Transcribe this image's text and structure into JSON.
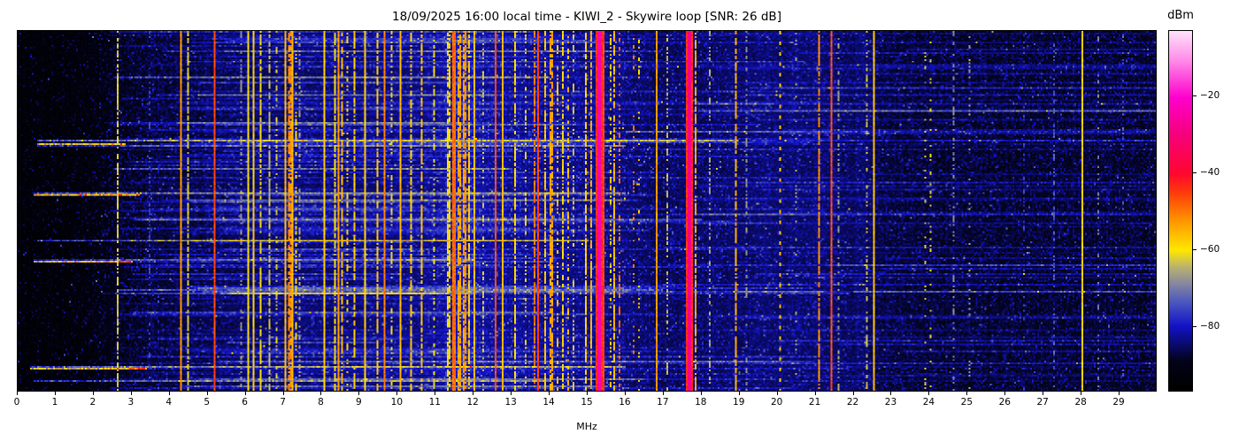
{
  "chart_data": {
    "type": "heatmap",
    "title": "18/09/2025 16:00 local time - KIWI_2 - Skywire loop [SNR: 26 dB]",
    "xlabel": "MHz",
    "colorbar_label": "dBm",
    "x_range_mhz": [
      0,
      30
    ],
    "x_ticks": [
      0,
      1,
      2,
      3,
      4,
      5,
      6,
      7,
      8,
      9,
      10,
      11,
      12,
      13,
      14,
      15,
      16,
      17,
      18,
      19,
      20,
      21,
      22,
      23,
      24,
      25,
      26,
      27,
      28,
      29
    ],
    "colorbar_ticks_dbm": [
      -20,
      -40,
      -60,
      -80
    ],
    "value_range_dbm": [
      -97,
      -3
    ],
    "legend_position": "right-colorbar",
    "grid": {
      "cols": 644,
      "rows": 205
    },
    "seed": 20250918,
    "colormap_stops": [
      [
        0.0,
        [
          0,
          0,
          0
        ]
      ],
      [
        0.08,
        [
          3,
          3,
          24
        ]
      ],
      [
        0.178,
        [
          18,
          18,
          200
        ]
      ],
      [
        0.245,
        [
          75,
          88,
          190
        ]
      ],
      [
        0.3,
        [
          138,
          138,
          158
        ]
      ],
      [
        0.345,
        [
          188,
          180,
          108
        ]
      ],
      [
        0.39,
        [
          255,
          232,
          0
        ]
      ],
      [
        0.47,
        [
          255,
          152,
          0
        ]
      ],
      [
        0.55,
        [
          255,
          60,
          10
        ]
      ],
      [
        0.602,
        [
          255,
          8,
          45
        ]
      ],
      [
        0.72,
        [
          246,
          0,
          130
        ]
      ],
      [
        0.816,
        [
          255,
          0,
          205
        ]
      ],
      [
        0.92,
        [
          255,
          140,
          233
        ]
      ],
      [
        1.0,
        [
          255,
          224,
          250
        ]
      ]
    ],
    "noise_floor_profile_dbm": [
      [
        0,
        -96.5
      ],
      [
        0.8,
        -96
      ],
      [
        1.6,
        -95
      ],
      [
        2.2,
        -93.5
      ],
      [
        2.8,
        -91
      ],
      [
        3.5,
        -89.5
      ],
      [
        4.5,
        -89.2
      ],
      [
        5.5,
        -88.6
      ],
      [
        6.5,
        -87.6
      ],
      [
        8,
        -87
      ],
      [
        9.5,
        -86.4
      ],
      [
        11,
        -85.4
      ],
      [
        11.7,
        -83
      ],
      [
        12.5,
        -85
      ],
      [
        14,
        -85.4
      ],
      [
        15,
        -85.4
      ],
      [
        16,
        -86.4
      ],
      [
        16.9,
        -88
      ],
      [
        18,
        -87.4
      ],
      [
        19.5,
        -86.8
      ],
      [
        21,
        -86.8
      ],
      [
        22.3,
        -87.6
      ],
      [
        23,
        -89.2
      ],
      [
        24.5,
        -89.8
      ],
      [
        26,
        -90
      ],
      [
        28,
        -90
      ],
      [
        30,
        -90.4
      ]
    ],
    "stations": [
      {
        "f": 2.59,
        "dbm": -63,
        "w": 1,
        "mode": "flicker"
      },
      {
        "f": 3.45,
        "dbm": -76,
        "w": 1,
        "mode": "dotted"
      },
      {
        "f": 4.28,
        "dbm": -53,
        "w": 1,
        "mode": "solid"
      },
      {
        "f": 4.47,
        "dbm": -63,
        "w": 1,
        "mode": "flicker"
      },
      {
        "f": 5.19,
        "dbm": -46,
        "w": 1,
        "mode": "solid"
      },
      {
        "f": 5.85,
        "dbm": -68,
        "w": 1,
        "mode": "dotted"
      },
      {
        "f": 6.07,
        "dbm": -61,
        "w": 1,
        "mode": "solid"
      },
      {
        "f": 6.19,
        "dbm": -58,
        "w": 1,
        "mode": "solid"
      },
      {
        "f": 6.38,
        "dbm": -61,
        "w": 1,
        "mode": "flicker"
      },
      {
        "f": 6.62,
        "dbm": -64,
        "w": 1,
        "mode": "flicker"
      },
      {
        "f": 6.8,
        "dbm": -63,
        "w": 1,
        "mode": "dotted"
      },
      {
        "f": 7.02,
        "dbm": -56,
        "w": 1,
        "mode": "solid"
      },
      {
        "f": 7.12,
        "dbm": -52,
        "w": 2,
        "mode": "flicker"
      },
      {
        "f": 7.21,
        "dbm": -56,
        "w": 1,
        "mode": "solid"
      },
      {
        "f": 7.32,
        "dbm": -60,
        "w": 1,
        "mode": "dotted"
      },
      {
        "f": 7.42,
        "dbm": -66,
        "w": 1,
        "mode": "dotted"
      },
      {
        "f": 8.06,
        "dbm": -58,
        "w": 1,
        "mode": "solid"
      },
      {
        "f": 8.33,
        "dbm": -61,
        "w": 1,
        "mode": "flicker"
      },
      {
        "f": 8.43,
        "dbm": -53,
        "w": 1,
        "mode": "solid"
      },
      {
        "f": 8.54,
        "dbm": -56,
        "w": 1,
        "mode": "flicker"
      },
      {
        "f": 8.65,
        "dbm": -59,
        "w": 1,
        "mode": "dotted"
      },
      {
        "f": 8.83,
        "dbm": -58,
        "w": 1,
        "mode": "flicker"
      },
      {
        "f": 9.11,
        "dbm": -58,
        "w": 1,
        "mode": "solid"
      },
      {
        "f": 9.46,
        "dbm": -57,
        "w": 1,
        "mode": "flicker"
      },
      {
        "f": 9.64,
        "dbm": -51,
        "w": 1,
        "mode": "solid"
      },
      {
        "f": 9.83,
        "dbm": -61,
        "w": 1,
        "mode": "dotted"
      },
      {
        "f": 10.04,
        "dbm": -56,
        "w": 1,
        "mode": "solid"
      },
      {
        "f": 10.32,
        "dbm": -58,
        "w": 1,
        "mode": "flicker"
      },
      {
        "f": 10.62,
        "dbm": -57,
        "w": 1,
        "mode": "flicker"
      },
      {
        "f": 10.97,
        "dbm": -61,
        "w": 1,
        "mode": "dotted"
      },
      {
        "f": 11.33,
        "dbm": -60,
        "w": 2,
        "mode": "flicker"
      },
      {
        "f": 11.48,
        "dbm": -49,
        "w": 2,
        "mode": "solid"
      },
      {
        "f": 11.62,
        "dbm": -54,
        "w": 2,
        "mode": "flicker"
      },
      {
        "f": 11.76,
        "dbm": -53,
        "w": 2,
        "mode": "flicker"
      },
      {
        "f": 11.9,
        "dbm": -57,
        "w": 1,
        "mode": "flicker"
      },
      {
        "f": 12.02,
        "dbm": -56,
        "w": 1,
        "mode": "solid"
      },
      {
        "f": 12.25,
        "dbm": -63,
        "w": 1,
        "mode": "dotted"
      },
      {
        "f": 12.56,
        "dbm": -47,
        "w": 1,
        "mode": "solid"
      },
      {
        "f": 12.77,
        "dbm": -56,
        "w": 1,
        "mode": "solid"
      },
      {
        "f": 13.07,
        "dbm": -59,
        "w": 1,
        "mode": "flicker"
      },
      {
        "f": 13.35,
        "dbm": -62,
        "w": 1,
        "mode": "dotted"
      },
      {
        "f": 13.58,
        "dbm": -50,
        "w": 1,
        "mode": "flicker"
      },
      {
        "f": 13.7,
        "dbm": -45,
        "w": 1,
        "mode": "solid"
      },
      {
        "f": 13.87,
        "dbm": -57,
        "w": 1,
        "mode": "flicker"
      },
      {
        "f": 14.0,
        "dbm": -54,
        "w": 2,
        "mode": "flicker"
      },
      {
        "f": 14.2,
        "dbm": -57,
        "w": 1,
        "mode": "dotted"
      },
      {
        "f": 14.35,
        "dbm": -59,
        "w": 1,
        "mode": "flicker"
      },
      {
        "f": 14.5,
        "dbm": -56,
        "w": 1,
        "mode": "dotted"
      },
      {
        "f": 14.65,
        "dbm": -63,
        "w": 1,
        "mode": "dotted"
      },
      {
        "f": 14.97,
        "dbm": -58,
        "w": 1,
        "mode": "flicker"
      },
      {
        "f": 15.1,
        "dbm": -55,
        "w": 1,
        "mode": "flicker"
      },
      {
        "f": 15.3,
        "dbm": -24,
        "w": 2,
        "mode": "solid"
      },
      {
        "f": 15.42,
        "dbm": -46,
        "w": 1,
        "mode": "solid"
      },
      {
        "f": 15.6,
        "dbm": -58,
        "w": 1,
        "mode": "dotted"
      },
      {
        "f": 15.72,
        "dbm": -56,
        "w": 1,
        "mode": "flicker"
      },
      {
        "f": 15.85,
        "dbm": -50,
        "w": 1,
        "mode": "dotted"
      },
      {
        "f": 16.2,
        "dbm": -51,
        "w": 1,
        "mode": "sparse"
      },
      {
        "f": 16.35,
        "dbm": -58,
        "w": 1,
        "mode": "sparse"
      },
      {
        "f": 16.8,
        "dbm": -53,
        "w": 1,
        "mode": "solid"
      },
      {
        "f": 17.1,
        "dbm": -64,
        "w": 1,
        "mode": "dotted"
      },
      {
        "f": 17.67,
        "dbm": -29,
        "w": 2,
        "mode": "solid"
      },
      {
        "f": 17.82,
        "dbm": -55,
        "w": 1,
        "mode": "flicker"
      },
      {
        "f": 18.2,
        "dbm": -66,
        "w": 1,
        "mode": "dotted"
      },
      {
        "f": 18.9,
        "dbm": -55,
        "w": 1,
        "mode": "flicker"
      },
      {
        "f": 19.2,
        "dbm": -68,
        "w": 1,
        "mode": "dotted"
      },
      {
        "f": 20.06,
        "dbm": -57,
        "w": 1,
        "mode": "periodic"
      },
      {
        "f": 20.5,
        "dbm": -66,
        "w": 1,
        "mode": "sparse"
      },
      {
        "f": 21.1,
        "dbm": -52,
        "w": 1,
        "mode": "flicker"
      },
      {
        "f": 21.45,
        "dbm": -47,
        "w": 1,
        "mode": "solid"
      },
      {
        "f": 21.6,
        "dbm": -67,
        "w": 1,
        "mode": "dotted"
      },
      {
        "f": 22.35,
        "dbm": -64,
        "w": 1,
        "mode": "dotted"
      },
      {
        "f": 22.55,
        "dbm": -57,
        "w": 1,
        "mode": "solid"
      },
      {
        "f": 23.9,
        "dbm": -63,
        "w": 1,
        "mode": "sparse"
      },
      {
        "f": 24.02,
        "dbm": -62,
        "w": 1,
        "mode": "sparse"
      },
      {
        "f": 24.65,
        "dbm": -69,
        "w": 1,
        "mode": "dotted"
      },
      {
        "f": 25.05,
        "dbm": -66,
        "w": 1,
        "mode": "sparse"
      },
      {
        "f": 26.5,
        "dbm": -76,
        "w": 1,
        "mode": "sparse"
      },
      {
        "f": 27.3,
        "dbm": -74,
        "w": 1,
        "mode": "dotted"
      },
      {
        "f": 28.05,
        "dbm": -58,
        "w": 1,
        "mode": "solid"
      },
      {
        "f": 28.45,
        "dbm": -70,
        "w": 1,
        "mode": "sparse"
      },
      {
        "f": 29.1,
        "dbm": -73,
        "w": 1,
        "mode": "sparse"
      }
    ],
    "streaks": [
      {
        "y": 0.125,
        "f0": 2.5,
        "f1": 14,
        "boost": 10
      },
      {
        "y": 0.3,
        "f0": 0.5,
        "f1": 19,
        "boost": 19
      },
      {
        "y": 0.315,
        "f0": 0.5,
        "f1": 16,
        "boost": 13
      },
      {
        "y": 0.38,
        "f0": 2.5,
        "f1": 13,
        "boost": 12
      },
      {
        "y": 0.45,
        "f0": 0.4,
        "f1": 16,
        "boost": 16
      },
      {
        "y": 0.455,
        "f0": 0.4,
        "f1": 3.2,
        "boost": 33
      },
      {
        "y": 0.52,
        "f0": 3.0,
        "f1": 18,
        "boost": 10
      },
      {
        "y": 0.58,
        "f0": 0.5,
        "f1": 15,
        "boost": 17
      },
      {
        "y": 0.635,
        "f0": 0.4,
        "f1": 12,
        "boost": 13
      },
      {
        "y": 0.64,
        "f0": 0.4,
        "f1": 3.0,
        "boost": 31
      },
      {
        "y": 0.715,
        "f0": 2.6,
        "f1": 17,
        "boost": 12
      },
      {
        "y": 0.78,
        "f0": 3.0,
        "f1": 14,
        "boost": 10
      },
      {
        "y": 0.31,
        "f0": 0.5,
        "f1": 2.8,
        "boost": 29
      },
      {
        "y": 0.93,
        "f0": 0.3,
        "f1": 16,
        "boost": 17
      },
      {
        "y": 0.935,
        "f0": 0.3,
        "f1": 3.4,
        "boost": 32
      },
      {
        "y": 0.97,
        "f0": 0.4,
        "f1": 14,
        "boost": 15
      },
      {
        "y": 0.22,
        "f0": 18,
        "f1": 30,
        "boost": 6
      },
      {
        "y": 0.28,
        "f0": 16,
        "f1": 30,
        "boost": 7
      },
      {
        "y": 0.42,
        "f0": 19,
        "f1": 30,
        "boost": 6
      },
      {
        "y": 0.6,
        "f0": 17,
        "f1": 30,
        "boost": 6
      },
      {
        "y": 0.72,
        "f0": 22,
        "f1": 30,
        "boost": 7
      },
      {
        "y": 0.86,
        "f0": 20,
        "f1": 30,
        "boost": 6
      }
    ]
  }
}
